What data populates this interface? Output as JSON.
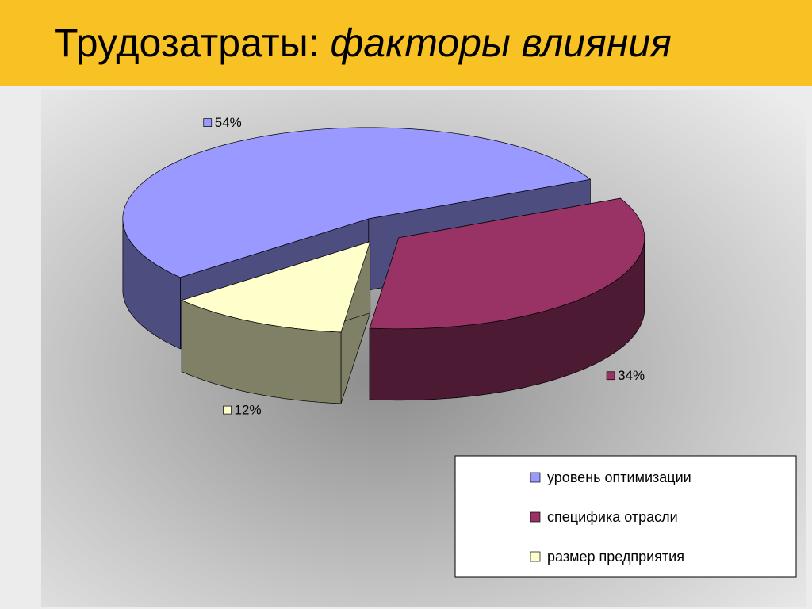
{
  "chart_data": {
    "type": "pie3d",
    "title": "Трудозатраты:",
    "subtitle": "факторы влияния",
    "categories": [
      "уровень оптимизации",
      "специфика отрасли",
      "размер предприятия"
    ],
    "values": [
      54,
      34,
      12
    ],
    "value_labels": [
      "54%",
      "34%",
      "12%"
    ],
    "colors": [
      "#9999ff",
      "#993366",
      "#ffffcc"
    ],
    "legend": "lower right"
  }
}
